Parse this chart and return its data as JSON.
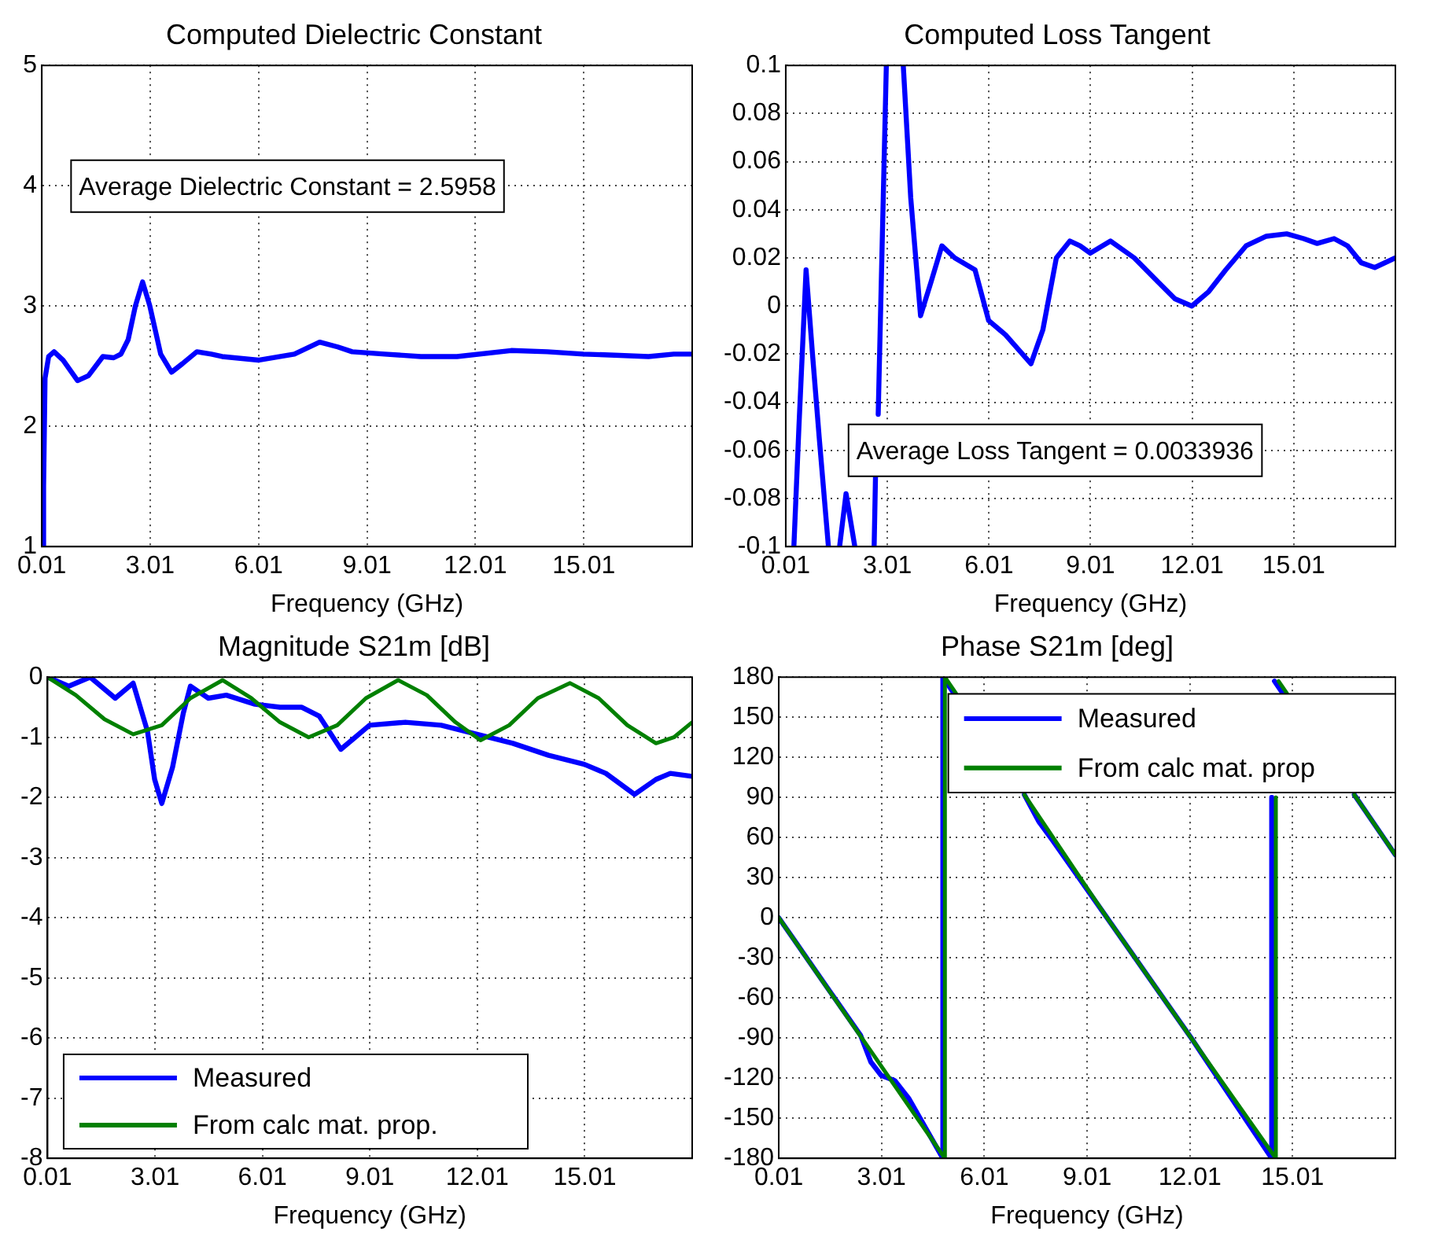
{
  "chart_data": [
    {
      "type": "line",
      "title": "Computed Dielectric Constant",
      "xlabel": "Frequency (GHz)",
      "xlim": [
        0.01,
        18.01
      ],
      "xticks": [
        0.01,
        3.01,
        6.01,
        9.01,
        12.01,
        15.01
      ],
      "ylim": [
        1,
        5
      ],
      "yticks": [
        1,
        2,
        3,
        4,
        5
      ],
      "grid": true,
      "annotations": [
        "Average Dielectric Constant = 2.5958"
      ],
      "series": [
        {
          "color": "#0000ff",
          "x": [
            0.03,
            0.06,
            0.1,
            0.2,
            0.35,
            0.6,
            1.0,
            1.3,
            1.7,
            2.0,
            2.2,
            2.4,
            2.6,
            2.8,
            3.0,
            3.3,
            3.6,
            3.9,
            4.3,
            4.7,
            5.0,
            6.0,
            7.0,
            7.7,
            8.2,
            8.6,
            9.5,
            10.5,
            11.5,
            13.0,
            14.0,
            15.0,
            16.0,
            16.8,
            17.5,
            18.01
          ],
          "values": [
            1,
            1.5,
            2.4,
            2.58,
            2.62,
            2.55,
            2.38,
            2.42,
            2.58,
            2.57,
            2.6,
            2.72,
            3.0,
            3.2,
            3.0,
            2.6,
            2.45,
            2.52,
            2.62,
            2.6,
            2.58,
            2.55,
            2.6,
            2.7,
            2.66,
            2.62,
            2.6,
            2.58,
            2.58,
            2.63,
            2.62,
            2.6,
            2.59,
            2.58,
            2.6,
            2.6
          ]
        }
      ]
    },
    {
      "type": "line",
      "title": "Computed Loss Tangent",
      "xlabel": "Frequency (GHz)",
      "xlim": [
        0.01,
        18.01
      ],
      "xticks": [
        0.01,
        3.01,
        6.01,
        9.01,
        12.01,
        15.01
      ],
      "ylim": [
        -0.1,
        0.1
      ],
      "yticks": [
        -0.1,
        -0.08,
        -0.06,
        -0.04,
        -0.02,
        0,
        0.02,
        0.04,
        0.06,
        0.08,
        0.1
      ],
      "grid": true,
      "annotations": [
        "Average Loss Tangent = 0.0033936"
      ],
      "series": [
        {
          "color": "#0000ff",
          "x": [
            0.25,
            0.4,
            0.61,
            0.8,
            1.0,
            1.27,
            1.45,
            1.6,
            1.79,
            2.05,
            2.3,
            2.62,
            2.66,
            2.69,
            2.74,
            2.98,
            3.2,
            3.48,
            3.7,
            3.99,
            4.3,
            4.62,
            5.0,
            5.6,
            6.0,
            6.5,
            7.0,
            7.25,
            7.6,
            8.0,
            8.4,
            8.7,
            9.0,
            9.6,
            10.3,
            11.0,
            11.5,
            12.0,
            12.5,
            13.0,
            13.6,
            14.2,
            14.8,
            15.3,
            15.7,
            16.2,
            16.6,
            17.0,
            17.4,
            18.01
          ],
          "values": [
            -0.1,
            -0.05,
            0.015,
            -0.02,
            -0.055,
            -0.1,
            null,
            -0.1,
            -0.078,
            -0.1,
            null,
            -0.1,
            -0.071,
            null,
            -0.045,
            0.1,
            null,
            0.1,
            0.045,
            -0.004,
            0.01,
            0.025,
            0.02,
            0.015,
            -0.006,
            -0.012,
            -0.02,
            -0.024,
            -0.01,
            0.02,
            0.027,
            0.025,
            0.022,
            0.027,
            0.02,
            0.01,
            0.003,
            0,
            0.006,
            0.015,
            0.025,
            0.029,
            0.03,
            0.028,
            0.026,
            0.028,
            0.025,
            0.018,
            0.016,
            0.02
          ]
        }
      ]
    },
    {
      "type": "line",
      "title": "Magnitude S21m [dB]",
      "xlabel": "Frequency (GHz)",
      "xlim": [
        0.01,
        18.01
      ],
      "xticks": [
        0.01,
        3.01,
        6.01,
        9.01,
        12.01,
        15.01
      ],
      "ylim": [
        -8,
        0
      ],
      "yticks": [
        -8,
        -7,
        -6,
        -5,
        -4,
        -3,
        -2,
        -1,
        0
      ],
      "grid": true,
      "legend": "bottom left",
      "series": [
        {
          "name": "Measured",
          "color": "#0000ff",
          "x": [
            0.01,
            0.6,
            1.2,
            1.9,
            2.4,
            2.8,
            3.0,
            3.2,
            3.5,
            3.8,
            4.0,
            4.5,
            5.0,
            5.8,
            6.5,
            7.1,
            7.6,
            8.2,
            8.6,
            9.0,
            10.0,
            11.0,
            12.0,
            13.0,
            14.0,
            15.0,
            15.6,
            16.4,
            17.0,
            17.4,
            18.01
          ],
          "values": [
            0,
            -0.15,
            0,
            -0.35,
            -0.1,
            -0.9,
            -1.7,
            -2.1,
            -1.5,
            -0.6,
            -0.15,
            -0.35,
            -0.3,
            -0.45,
            -0.5,
            -0.5,
            -0.65,
            -1.2,
            -1.0,
            -0.8,
            -0.75,
            -0.8,
            -0.95,
            -1.1,
            -1.3,
            -1.45,
            -1.6,
            -1.95,
            -1.7,
            -1.6,
            -1.65
          ]
        },
        {
          "name": "From calc mat. prop.",
          "color": "#008000",
          "x": [
            0.01,
            0.8,
            1.6,
            2.4,
            3.2,
            4.0,
            4.9,
            5.7,
            6.5,
            7.3,
            8.1,
            8.9,
            9.8,
            10.6,
            11.4,
            12.1,
            12.9,
            13.7,
            14.6,
            15.4,
            16.2,
            17.0,
            17.5,
            18.01
          ],
          "values": [
            0,
            -0.3,
            -0.7,
            -0.95,
            -0.8,
            -0.35,
            -0.05,
            -0.35,
            -0.75,
            -1.0,
            -0.8,
            -0.35,
            -0.05,
            -0.3,
            -0.75,
            -1.05,
            -0.8,
            -0.35,
            -0.1,
            -0.35,
            -0.8,
            -1.1,
            -1.0,
            -0.75
          ]
        }
      ]
    },
    {
      "type": "line",
      "title": "Phase S21m [deg]",
      "xlabel": "Frequency (GHz)",
      "xlim": [
        0.01,
        18.01
      ],
      "xticks": [
        0.01,
        3.01,
        6.01,
        9.01,
        12.01,
        15.01
      ],
      "ylim": [
        -180,
        180
      ],
      "yticks": [
        -180,
        -150,
        -120,
        -90,
        -60,
        -30,
        0,
        30,
        60,
        90,
        120,
        150,
        180
      ],
      "grid": true,
      "legend": "top right",
      "series": [
        {
          "name": "Measured",
          "color": "#0000ff",
          "x": [
            0.01,
            1.5,
            2.4,
            2.7,
            3.0,
            3.4,
            3.8,
            4.8,
            4.8,
            5.12,
            5.3,
            7.18,
            7.6,
            8.0,
            9.59,
            12.05,
            14.4,
            14.4,
            14.44,
            14.48,
            14.72,
            15.5,
            16.81,
            18.01
          ],
          "values": [
            0,
            -55,
            -88,
            -108,
            -118,
            -122,
            -135,
            -180,
            180,
            168,
            null,
            92,
            72,
            58,
            0,
            -90,
            -180,
            90,
            null,
            177,
            168,
            null,
            92,
            47
          ]
        },
        {
          "name": "From calc mat. prop",
          "color": "#008000",
          "x": [
            0.01,
            4.86,
            4.86,
            5.18,
            5.3,
            7.18,
            9.59,
            12.05,
            14.52,
            14.52,
            14.56,
            14.6,
            14.84,
            15.5,
            16.81,
            18.01
          ],
          "values": [
            0,
            -180,
            180,
            168,
            null,
            92,
            0,
            -90,
            -180,
            90,
            null,
            177,
            168,
            null,
            92,
            47
          ]
        }
      ]
    }
  ]
}
